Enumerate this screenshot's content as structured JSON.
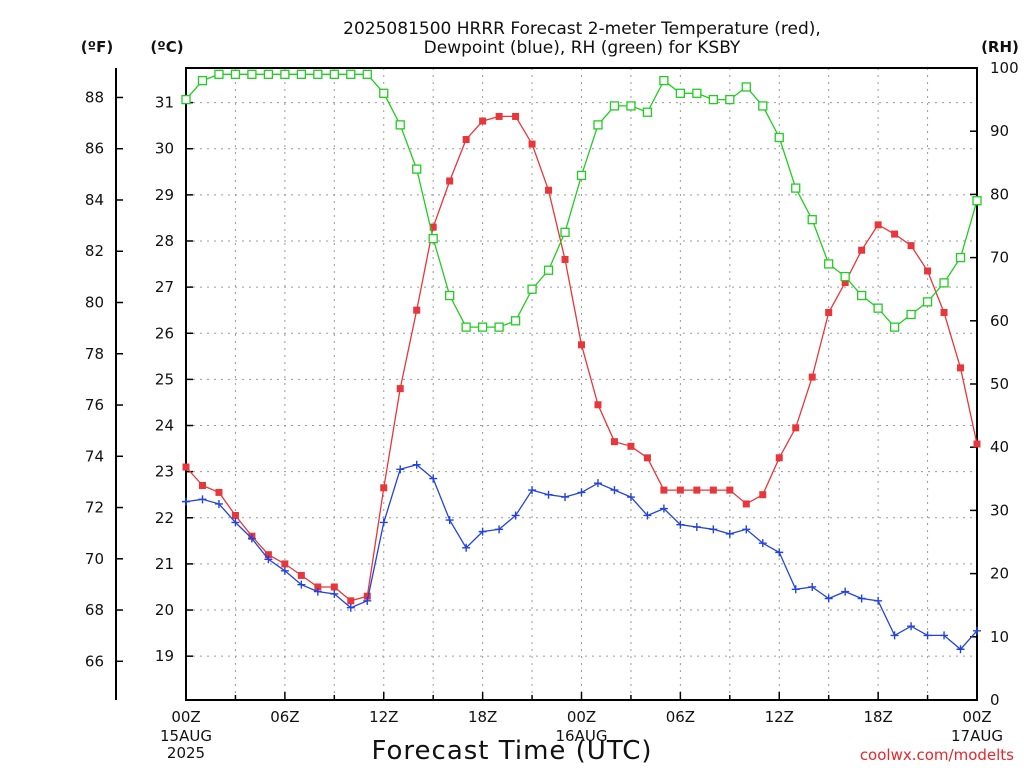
{
  "chart_data": {
    "type": "line",
    "title": "2025081500 HRRR Forecast 2-meter Temperature (red),\nDewpoint (blue), RH (green) for KSBY",
    "xlabel": "Forecast Time (UTC)",
    "credit": "coolwx.com/modelts",
    "units": {
      "left_f": "(ºF)",
      "left_c": "(ºC)",
      "right": "(RH)"
    },
    "x_hours": [
      0,
      1,
      2,
      3,
      4,
      5,
      6,
      7,
      8,
      9,
      10,
      11,
      12,
      13,
      14,
      15,
      16,
      17,
      18,
      19,
      20,
      21,
      22,
      23,
      24,
      25,
      26,
      27,
      28,
      29,
      30,
      31,
      32,
      33,
      34,
      35,
      36,
      37,
      38,
      39,
      40,
      41,
      42,
      43,
      44,
      45,
      46,
      47,
      48
    ],
    "x_ticks": [
      {
        "hour": 0,
        "label": "00Z",
        "sub": [
          "15AUG",
          "2025"
        ]
      },
      {
        "hour": 6,
        "label": "06Z",
        "sub": []
      },
      {
        "hour": 12,
        "label": "12Z",
        "sub": []
      },
      {
        "hour": 18,
        "label": "18Z",
        "sub": []
      },
      {
        "hour": 24,
        "label": "00Z",
        "sub": [
          "16AUG"
        ]
      },
      {
        "hour": 30,
        "label": "06Z",
        "sub": []
      },
      {
        "hour": 36,
        "label": "12Z",
        "sub": []
      },
      {
        "hour": 42,
        "label": "18Z",
        "sub": []
      },
      {
        "hour": 48,
        "label": "00Z",
        "sub": [
          "17AUG"
        ]
      }
    ],
    "y_celsius_range": [
      18.05,
      31.75
    ],
    "y_celsius_ticks": [
      19,
      20,
      21,
      22,
      23,
      24,
      25,
      26,
      27,
      28,
      29,
      30,
      31
    ],
    "y_fahrenheit_ticks": [
      66,
      68,
      70,
      72,
      74,
      76,
      78,
      80,
      82,
      84,
      86,
      88
    ],
    "y_rh_range": [
      0,
      100
    ],
    "y_rh_ticks": [
      0,
      10,
      20,
      30,
      40,
      50,
      60,
      70,
      80,
      90,
      100
    ],
    "grid": true,
    "series": [
      {
        "name": "Temperature",
        "color": "#e8363a",
        "marker": "filled-square",
        "axis": "celsius",
        "values": [
          23.1,
          22.7,
          22.55,
          22.05,
          21.6,
          21.2,
          21.0,
          20.75,
          20.5,
          20.5,
          20.2,
          20.3,
          22.65,
          24.8,
          26.5,
          28.3,
          29.3,
          30.2,
          30.6,
          30.7,
          30.7,
          30.1,
          29.1,
          27.6,
          25.75,
          24.45,
          23.65,
          23.55,
          23.3,
          22.6,
          22.6,
          22.6,
          22.6,
          22.6,
          22.3,
          22.5,
          23.3,
          23.95,
          25.05,
          26.45,
          27.1,
          27.8,
          28.35,
          28.15,
          27.9,
          27.35,
          26.45,
          25.25,
          23.6
        ]
      },
      {
        "name": "Dewpoint",
        "color": "#2244dd",
        "marker": "plus",
        "axis": "celsius",
        "values": [
          22.35,
          22.4,
          22.3,
          21.9,
          21.55,
          21.1,
          20.85,
          20.55,
          20.4,
          20.35,
          20.05,
          20.2,
          21.9,
          23.05,
          23.15,
          22.85,
          21.95,
          21.35,
          21.7,
          21.75,
          22.05,
          22.6,
          22.5,
          22.45,
          22.55,
          22.75,
          22.6,
          22.45,
          22.05,
          22.2,
          21.85,
          21.8,
          21.75,
          21.65,
          21.75,
          21.45,
          21.25,
          20.45,
          20.5,
          20.25,
          20.4,
          20.25,
          20.2,
          19.45,
          19.65,
          19.45,
          19.45,
          19.15,
          19.55
        ]
      },
      {
        "name": "RH",
        "color": "#22cc22",
        "marker": "open-square",
        "axis": "rh",
        "values": [
          95,
          98,
          99,
          99,
          99,
          99,
          99,
          99,
          99,
          99,
          99,
          99,
          96,
          91,
          84,
          73,
          64,
          59,
          59,
          59,
          60,
          65,
          68,
          74,
          83,
          91,
          94,
          94,
          93,
          98,
          96,
          96,
          95,
          95,
          97,
          94,
          89,
          81,
          76,
          69,
          67,
          64,
          62,
          59,
          61,
          63,
          66,
          70,
          79
        ]
      }
    ]
  }
}
